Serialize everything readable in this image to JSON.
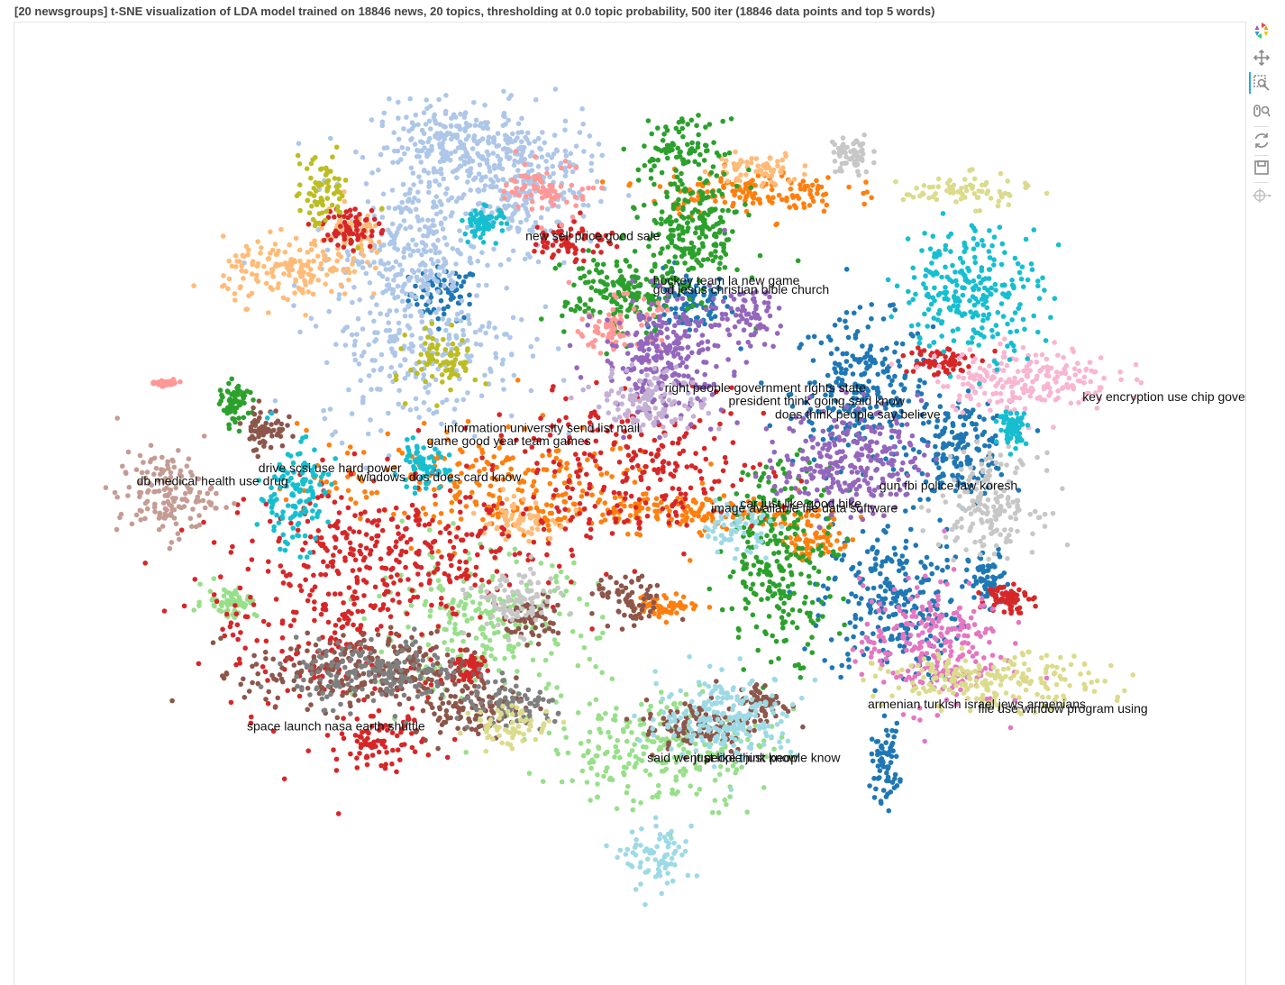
{
  "title": "[20 newsgroups] t-SNE visualization of LDA model trained on 18846 news, 20 topics, thresholding at 0.0 topic probability, 500 iter (18846 data points and top 5 words)",
  "toolbar": [
    {
      "name": "bokeh-logo-icon",
      "interactable": false
    },
    {
      "name": "pan-tool-icon",
      "interactable": true
    },
    {
      "name": "box-zoom-tool-icon",
      "interactable": true,
      "active": true
    },
    {
      "name": "wheel-zoom-tool-icon",
      "interactable": true
    },
    {
      "name": "reset-tool-icon",
      "interactable": true
    },
    {
      "name": "save-tool-icon",
      "interactable": true
    },
    {
      "name": "hover-tool-icon",
      "interactable": true
    }
  ],
  "chart_data": {
    "type": "scatter",
    "title": "[20 newsgroups] t-SNE visualization of LDA model trained on 18846 news, 20 topics, thresholding at 0.0 topic probability, 500 iter (18846 data points and top 5 words)",
    "n_points": 18846,
    "xlabel": "",
    "ylabel": "",
    "axes_visible": false,
    "grid": false,
    "xlim": [
      -100,
      100
    ],
    "ylim": [
      -100,
      100
    ],
    "palette": [
      "#1f77b4",
      "#aec7e8",
      "#ff7f0e",
      "#ffbb78",
      "#2ca02c",
      "#98df8a",
      "#d62728",
      "#ff9896",
      "#9467bd",
      "#c5b0d5",
      "#8c564b",
      "#c49c94",
      "#e377c2",
      "#f7b6d2",
      "#7f7f7f",
      "#c7c7c7",
      "#bcbd22",
      "#dbdb8d",
      "#17becf",
      "#9edae5"
    ],
    "series": [
      {
        "topic": 0,
        "color": "#1f77b4",
        "clusters": [
          [
            -32,
            47,
            5,
            5
          ],
          [
            10,
            45,
            6,
            6
          ],
          [
            40,
            25,
            10,
            14
          ],
          [
            57,
            12,
            7,
            9
          ],
          [
            45,
            -22,
            10,
            15
          ],
          [
            62,
            -18,
            3,
            6
          ],
          [
            44,
            -58,
            2,
            7
          ]
        ]
      },
      {
        "topic": 1,
        "color": "#aec7e8",
        "clusters": [
          [
            -30,
            80,
            12,
            8
          ],
          [
            -18,
            72,
            10,
            12
          ],
          [
            -38,
            57,
            10,
            14
          ],
          [
            -36,
            35,
            15,
            15
          ]
        ]
      },
      {
        "topic": 2,
        "color": "#ff7f0e",
        "clusters": [
          [
            10,
            -2,
            20,
            3
          ],
          [
            -25,
            4,
            26,
            11
          ],
          [
            6,
            -23,
            5,
            2
          ],
          [
            32,
            -8,
            5,
            4
          ],
          [
            20,
            70,
            14,
            4
          ]
        ]
      },
      {
        "topic": 3,
        "color": "#ffbb78",
        "clusters": [
          [
            -58,
            52,
            10,
            6
          ],
          [
            -48,
            60,
            5,
            5
          ],
          [
            22,
            75,
            6,
            3
          ],
          [
            -20,
            -3,
            6,
            4
          ]
        ]
      },
      {
        "topic": 4,
        "color": "#2ca02c",
        "clusters": [
          [
            9,
            80,
            6,
            5
          ],
          [
            11,
            61,
            7,
            12
          ],
          [
            -2,
            47,
            8,
            8
          ],
          [
            -68,
            22,
            2,
            4
          ],
          [
            26,
            -12,
            8,
            18
          ]
        ]
      },
      {
        "topic": 5,
        "color": "#98df8a",
        "clusters": [
          [
            5,
            -55,
            16,
            11
          ],
          [
            -25,
            -28,
            16,
            14
          ],
          [
            -69,
            -22,
            4,
            3
          ]
        ]
      },
      {
        "topic": 6,
        "color": "#d62728",
        "clusters": [
          [
            -51,
            -25,
            18,
            22
          ],
          [
            -43,
            -54,
            6,
            5
          ],
          [
            -38,
            -12,
            22,
            13
          ],
          [
            -48,
            62,
            4,
            4
          ],
          [
            -10,
            59,
            6,
            4
          ],
          [
            0,
            7,
            20,
            13
          ],
          [
            65,
            -21,
            3,
            3
          ],
          [
            53,
            32,
            5,
            3
          ],
          [
            -28,
            -37,
            3,
            3
          ]
        ]
      },
      {
        "topic": 7,
        "color": "#ff9896",
        "clusters": [
          [
            -14,
            70,
            6,
            5
          ],
          [
            -2,
            40,
            6,
            5
          ],
          [
            -80,
            27,
            1.5,
            0.5
          ]
        ]
      },
      {
        "topic": 8,
        "color": "#9467bd",
        "clusters": [
          [
            6,
            33,
            9,
            11
          ],
          [
            20,
            42,
            5,
            5
          ],
          [
            38,
            10,
            10,
            10
          ]
        ]
      },
      {
        "topic": 9,
        "color": "#c5b0d5",
        "clusters": [
          [
            4,
            23,
            8,
            6
          ]
        ]
      },
      {
        "topic": 10,
        "color": "#8c564b",
        "clusters": [
          [
            -17,
            -26,
            4,
            4
          ],
          [
            0,
            -22,
            5,
            5
          ],
          [
            -47,
            -38,
            16,
            7
          ],
          [
            12,
            -50,
            8,
            5
          ],
          [
            23,
            -45,
            4,
            4
          ],
          [
            -63,
            17,
            3,
            4
          ],
          [
            -28,
            -46,
            8,
            5
          ]
        ]
      },
      {
        "topic": 11,
        "color": "#c49c94",
        "clusters": [
          [
            -80,
            2,
            7,
            8
          ]
        ]
      },
      {
        "topic": 12,
        "color": "#e377c2",
        "clusters": [
          [
            52,
            -32,
            10,
            12
          ]
        ]
      },
      {
        "topic": 13,
        "color": "#f7b6d2",
        "clusters": [
          [
            68,
            28,
            13,
            6
          ]
        ]
      },
      {
        "topic": 14,
        "color": "#7f7f7f",
        "clusters": [
          [
            -43,
            -38,
            12,
            6
          ],
          [
            -20,
            -46,
            8,
            4
          ]
        ]
      },
      {
        "topic": 15,
        "color": "#c7c7c7",
        "clusters": [
          [
            38,
            78,
            3,
            4
          ],
          [
            62,
            0,
            7,
            9
          ],
          [
            -20,
            -22,
            6,
            6
          ]
        ]
      },
      {
        "topic": 16,
        "color": "#bcbd22",
        "clusters": [
          [
            -53,
            70,
            4,
            7
          ],
          [
            -32,
            32,
            5,
            6
          ]
        ]
      },
      {
        "topic": 17,
        "color": "#dbdb8d",
        "clusters": [
          [
            58,
            70,
            9,
            3
          ],
          [
            62,
            -40,
            16,
            5
          ],
          [
            -20,
            -50,
            6,
            4
          ]
        ]
      },
      {
        "topic": 18,
        "color": "#17becf",
        "clusters": [
          [
            59,
            48,
            10,
            12
          ],
          [
            -58,
            2,
            5,
            10
          ],
          [
            -36,
            8,
            4,
            4
          ],
          [
            -25,
            63,
            3,
            3
          ],
          [
            66,
            17,
            2,
            3
          ]
        ]
      },
      {
        "topic": 19,
        "color": "#9edae5",
        "clusters": [
          [
            17,
            -48,
            10,
            8
          ],
          [
            5,
            -80,
            5,
            6
          ],
          [
            18,
            -5,
            5,
            5
          ]
        ]
      }
    ],
    "annotations": [
      {
        "text": "new sell price good sale",
        "x": -18,
        "y": 59
      },
      {
        "text": "hockey team la new game",
        "x": 4,
        "y": 49
      },
      {
        "text": "god jesus christian bible church",
        "x": 4,
        "y": 47
      },
      {
        "text": "key encryption use chip governmen",
        "x": 78,
        "y": 23
      },
      {
        "text": "right people government rights state",
        "x": 6,
        "y": 25
      },
      {
        "text": "president think going said know",
        "x": 17,
        "y": 22
      },
      {
        "text": "does think people say believe",
        "x": 25,
        "y": 19
      },
      {
        "text": "information university send list mail",
        "x": -32,
        "y": 16
      },
      {
        "text": "game good year team games",
        "x": -35,
        "y": 13
      },
      {
        "text": "drive scsi use hard power",
        "x": -64,
        "y": 7
      },
      {
        "text": "windows dos does card know",
        "x": -47,
        "y": 5
      },
      {
        "text": "db medical health use drug",
        "x": -85,
        "y": 4
      },
      {
        "text": "gun fbi police law koresh",
        "x": 43,
        "y": 3
      },
      {
        "text": "car just like good bike",
        "x": 19,
        "y": -1
      },
      {
        "text": "image available file data software",
        "x": 14,
        "y": -2
      },
      {
        "text": "armenian turkish israel jews armenians",
        "x": 41,
        "y": -46
      },
      {
        "text": "file use window program using",
        "x": 60,
        "y": -47
      },
      {
        "text": "space launch nasa earth shuttle",
        "x": -66,
        "y": -51
      },
      {
        "text": "said went people just know",
        "x": 3,
        "y": -58
      },
      {
        "text": "just like think people know",
        "x": 11,
        "y": -58
      }
    ]
  }
}
